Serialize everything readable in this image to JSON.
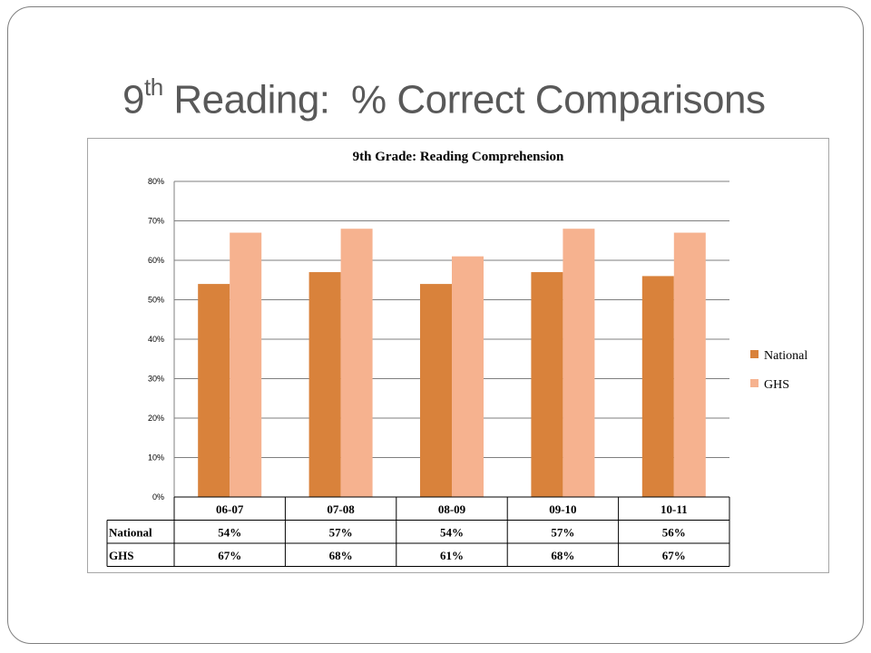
{
  "slide": {
    "title_main": "9",
    "title_sup": "th",
    "title_rest": " Reading:  % Correct Comparisons"
  },
  "colors": {
    "national": "#d9823b",
    "ghs": "#f6b28f",
    "grid": "#7f7f7f",
    "text": "#000000",
    "title_text": "#595959"
  },
  "chart_data": {
    "type": "bar",
    "title": "9th Grade: Reading Comprehension",
    "categories": [
      "06-07",
      "07-08",
      "08-09",
      "09-10",
      "10-11"
    ],
    "series": [
      {
        "name": "National",
        "values": [
          54,
          57,
          54,
          57,
          56
        ],
        "labels": [
          "54%",
          "57%",
          "54%",
          "57%",
          "56%"
        ]
      },
      {
        "name": "GHS",
        "values": [
          67,
          68,
          61,
          68,
          67
        ],
        "labels": [
          "67%",
          "68%",
          "61%",
          "68%",
          "67%"
        ]
      }
    ],
    "yticks": [
      "0%",
      "10%",
      "20%",
      "30%",
      "40%",
      "50%",
      "60%",
      "70%",
      "80%"
    ],
    "ylim": [
      0,
      80
    ],
    "xlabel": "",
    "ylabel": "",
    "grid": true,
    "legend_position": "right",
    "data_table": true
  }
}
